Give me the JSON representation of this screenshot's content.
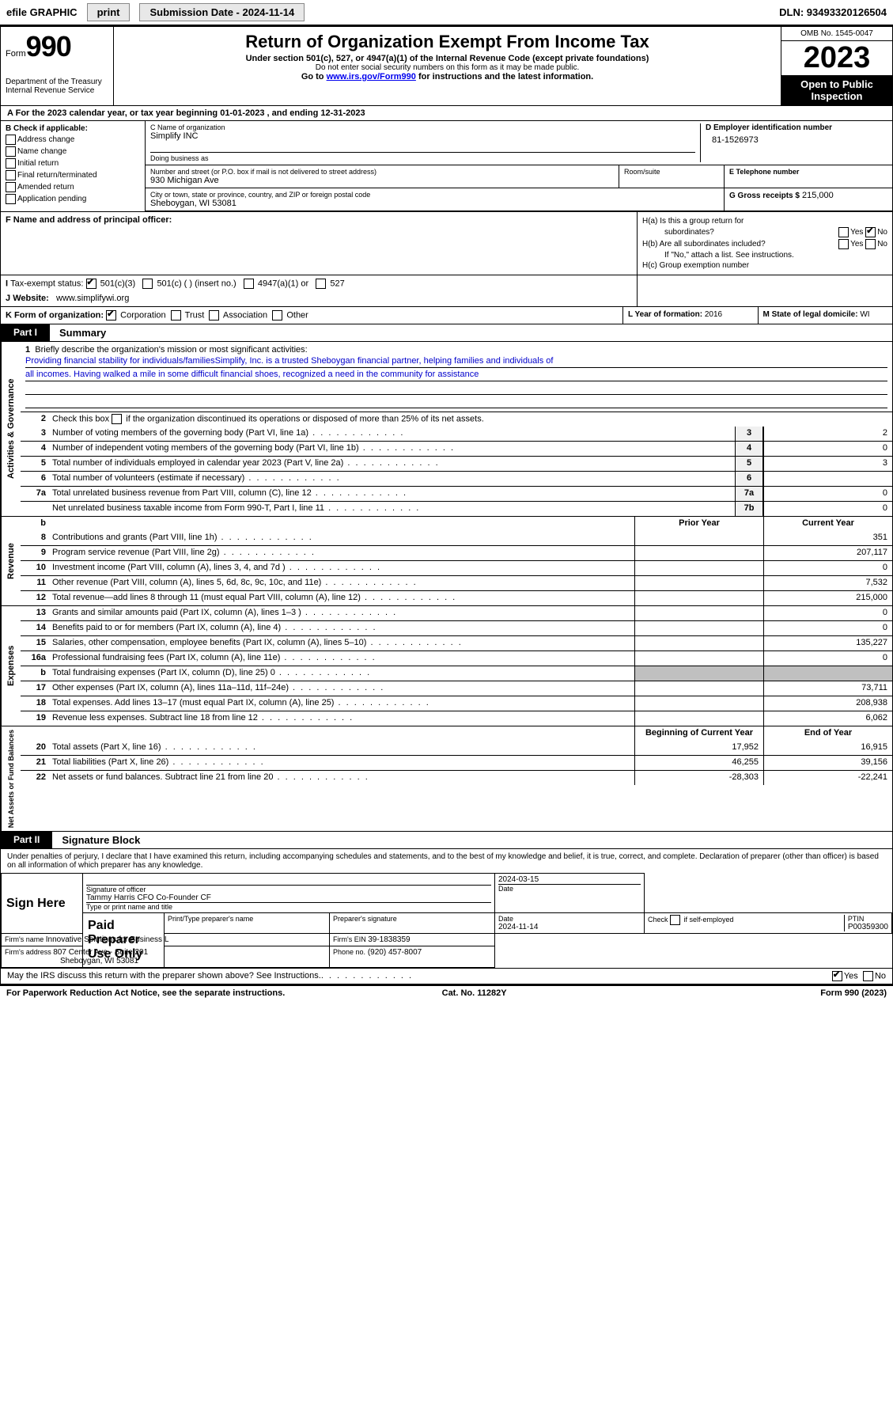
{
  "topbar": {
    "efile_label": "efile GRAPHIC",
    "print_label": "print",
    "submission_label": "Submission Date - 2024-11-14",
    "dln_label": "DLN: 93493320126504"
  },
  "header": {
    "form_word": "Form",
    "form_number": "990",
    "title": "Return of Organization Exempt From Income Tax",
    "subtitle": "Under section 501(c), 527, or 4947(a)(1) of the Internal Revenue Code (except private foundations)",
    "warn": "Do not enter social security numbers on this form as it may be made public.",
    "goto_prefix": "Go to ",
    "goto_link": "www.irs.gov/Form990",
    "goto_suffix": " for instructions and the latest information.",
    "dept": "Department of the Treasury",
    "irs": "Internal Revenue Service",
    "omb": "OMB No. 1545-0047",
    "year": "2023",
    "public1": "Open to Public",
    "public2": "Inspection"
  },
  "line_a": "For the 2023 calendar year, or tax year beginning 01-01-2023    , and ending 12-31-2023",
  "box_b": {
    "header": "B Check if applicable:",
    "items": [
      "Address change",
      "Name change",
      "Initial return",
      "Final return/terminated",
      "Amended return",
      "Application pending"
    ]
  },
  "box_c": {
    "name_label": "C Name of organization",
    "name": "Simplify INC",
    "dba_label": "Doing business as",
    "street_label": "Number and street (or P.O. box if mail is not delivered to street address)",
    "street": "930 Michigan Ave",
    "suite_label": "Room/suite",
    "city_label": "City or town, state or province, country, and ZIP or foreign postal code",
    "city": "Sheboygan, WI  53081"
  },
  "box_d": {
    "label": "D Employer identification number",
    "value": "81-1526973"
  },
  "box_e": {
    "label": "E Telephone number"
  },
  "box_g": {
    "label": "G Gross receipts $",
    "value": "215,000"
  },
  "box_f": {
    "label": "F  Name and address of principal officer:"
  },
  "box_h": {
    "ha": "H(a)  Is this a group return for",
    "ha2": "subordinates?",
    "hb": "H(b)  Are all subordinates included?",
    "hb2": "If \"No,\" attach a list. See instructions.",
    "hc": "H(c)  Group exemption number ",
    "yes": "Yes",
    "no": "No"
  },
  "box_i": {
    "label": "Tax-exempt status:",
    "o1": "501(c)(3)",
    "o2": "501(c) (  ) (insert no.)",
    "o3": "4947(a)(1) or",
    "o4": "527"
  },
  "box_j": {
    "label": "Website: ",
    "value": "www.simplifywi.org"
  },
  "box_k": {
    "label": "K Form of organization:",
    "o1": "Corporation",
    "o2": "Trust",
    "o3": "Association",
    "o4": "Other"
  },
  "box_l": {
    "label": "L Year of formation:",
    "value": "2016"
  },
  "box_m": {
    "label": "M State of legal domicile:",
    "value": "WI"
  },
  "part1": {
    "num": "Part I",
    "title": "Summary"
  },
  "mission": {
    "num": "1",
    "label": "Briefly describe the organization's mission or most significant activities:",
    "text1": "Providing financial stability for individuals/familiesSimplify, Inc. is a trusted Sheboygan financial partner, helping families and individuals of",
    "text2": "all incomes. Having walked a mile in some difficult financial shoes, recognized a need in the community for assistance"
  },
  "governance": {
    "label": "Activities & Governance",
    "l2": {
      "n": "2",
      "t": "Check this box        if the organization discontinued its operations or disposed of more than 25% of its net assets."
    },
    "lines": [
      {
        "n": "3",
        "t": "Number of voting members of the governing body (Part VI, line 1a)",
        "box": "3",
        "v": "2"
      },
      {
        "n": "4",
        "t": "Number of independent voting members of the governing body (Part VI, line 1b)",
        "box": "4",
        "v": "0"
      },
      {
        "n": "5",
        "t": "Total number of individuals employed in calendar year 2023 (Part V, line 2a)",
        "box": "5",
        "v": "3"
      },
      {
        "n": "6",
        "t": "Total number of volunteers (estimate if necessary)",
        "box": "6",
        "v": ""
      },
      {
        "n": "7a",
        "t": "Total unrelated business revenue from Part VIII, column (C), line 12",
        "box": "7a",
        "v": "0"
      },
      {
        "n": "",
        "t": "Net unrelated business taxable income from Form 990-T, Part I, line 11",
        "box": "7b",
        "v": "0"
      }
    ]
  },
  "revenue": {
    "label": "Revenue",
    "hdr1": "Prior Year",
    "hdr2": "Current Year",
    "lines": [
      {
        "n": "8",
        "t": "Contributions and grants (Part VIII, line 1h)",
        "v1": "",
        "v2": "351"
      },
      {
        "n": "9",
        "t": "Program service revenue (Part VIII, line 2g)",
        "v1": "",
        "v2": "207,117"
      },
      {
        "n": "10",
        "t": "Investment income (Part VIII, column (A), lines 3, 4, and 7d )",
        "v1": "",
        "v2": "0"
      },
      {
        "n": "11",
        "t": "Other revenue (Part VIII, column (A), lines 5, 6d, 8c, 9c, 10c, and 11e)",
        "v1": "",
        "v2": "7,532"
      },
      {
        "n": "12",
        "t": "Total revenue—add lines 8 through 11 (must equal Part VIII, column (A), line 12)",
        "v1": "",
        "v2": "215,000"
      }
    ]
  },
  "expenses": {
    "label": "Expenses",
    "lines": [
      {
        "n": "13",
        "t": "Grants and similar amounts paid (Part IX, column (A), lines 1–3 )",
        "v1": "",
        "v2": "0"
      },
      {
        "n": "14",
        "t": "Benefits paid to or for members (Part IX, column (A), line 4)",
        "v1": "",
        "v2": "0"
      },
      {
        "n": "15",
        "t": "Salaries, other compensation, employee benefits (Part IX, column (A), lines 5–10)",
        "v1": "",
        "v2": "135,227"
      },
      {
        "n": "16a",
        "t": "Professional fundraising fees (Part IX, column (A), line 11e)",
        "v1": "",
        "v2": "0"
      },
      {
        "n": "b",
        "t": "Total fundraising expenses (Part IX, column (D), line 25) 0",
        "v1": "shade",
        "v2": "shade"
      },
      {
        "n": "17",
        "t": "Other expenses (Part IX, column (A), lines 11a–11d, 11f–24e)",
        "v1": "",
        "v2": "73,711"
      },
      {
        "n": "18",
        "t": "Total expenses. Add lines 13–17 (must equal Part IX, column (A), line 25)",
        "v1": "",
        "v2": "208,938"
      },
      {
        "n": "19",
        "t": "Revenue less expenses. Subtract line 18 from line 12",
        "v1": "",
        "v2": "6,062"
      }
    ]
  },
  "netassets": {
    "label": "Net Assets or Fund Balances",
    "hdr1": "Beginning of Current Year",
    "hdr2": "End of Year",
    "lines": [
      {
        "n": "20",
        "t": "Total assets (Part X, line 16)",
        "v1": "17,952",
        "v2": "16,915"
      },
      {
        "n": "21",
        "t": "Total liabilities (Part X, line 26)",
        "v1": "46,255",
        "v2": "39,156"
      },
      {
        "n": "22",
        "t": "Net assets or fund balances. Subtract line 21 from line 20",
        "v1": "-28,303",
        "v2": "-22,241"
      }
    ]
  },
  "part2": {
    "num": "Part II",
    "title": "Signature Block"
  },
  "sig": {
    "perjury": "Under penalties of perjury, I declare that I have examined this return, including accompanying schedules and statements, and to the best of my knowledge and belief, it is true, correct, and complete. Declaration of preparer (other than officer) is based on all information of which preparer has any knowledge.",
    "sign_here": "Sign Here",
    "sig_officer": "Signature of officer",
    "officer_name": "Tammy Harris CFO Co-Founder CF",
    "type_name": "Type or print name and title",
    "date": "Date",
    "date_val": "2024-03-15",
    "paid": "Paid Preparer Use Only",
    "prep_name_label": "Print/Type preparer's name",
    "prep_sig_label": "Preparer's signature",
    "prep_date_label": "Date",
    "prep_date": "2024-11-14",
    "check_label": "Check          if self-employed",
    "ptin_label": "PTIN",
    "ptin": "P00359300",
    "firm_name_label": "Firm's name   ",
    "firm_name": "Innovative Solutions for Business L",
    "firm_ein_label": "Firm's EIN  ",
    "firm_ein": "39-1838359",
    "firm_addr_label": "Firm's address ",
    "firm_addr1": "807 Center Ave - Suite 201",
    "firm_addr2": "Sheboygan, WI  53081",
    "phone_label": "Phone no.",
    "phone": "(920) 457-8007",
    "discuss": "May the IRS discuss this return with the preparer shown above? See Instructions."
  },
  "footer": {
    "left": "For Paperwork Reduction Act Notice, see the separate instructions.",
    "mid": "Cat. No. 11282Y",
    "right": "Form 990 (2023)"
  },
  "colors": {
    "link": "#0000ee",
    "black": "#000000",
    "shade": "#c0c0c0"
  }
}
